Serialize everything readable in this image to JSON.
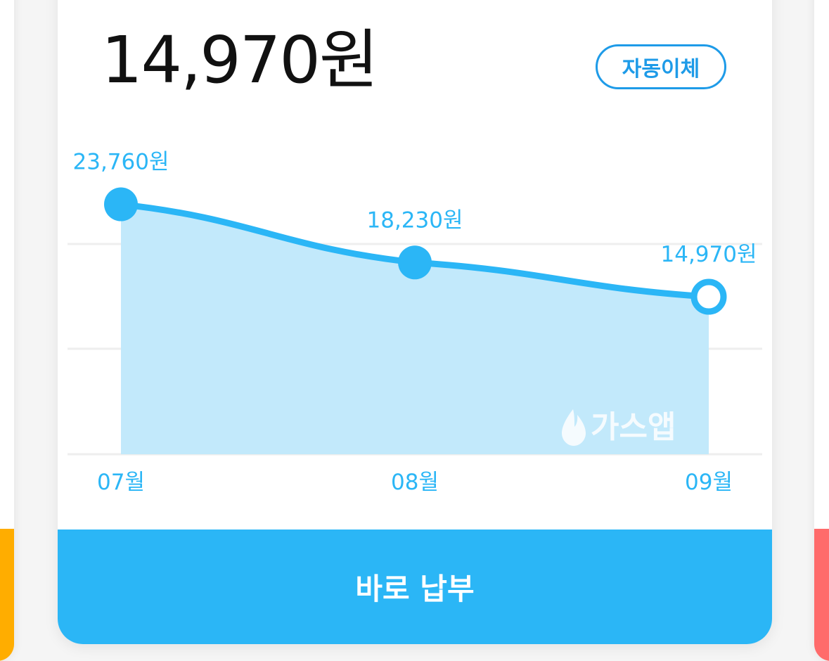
{
  "bill": {
    "amount": "14,970원",
    "auto_transfer_label": "자동이체",
    "pay_button_label": "바로 납부"
  },
  "watermark": {
    "text": "가스앱",
    "icon": "flame-icon"
  },
  "colors": {
    "accent": "#2bb6f6",
    "accent_dark": "#1e9be8",
    "area_fill": "#c2e9fb",
    "left_card_strip": "#ffad00",
    "right_card_strip": "#ff6b6b"
  },
  "chart_data": {
    "type": "area",
    "categories": [
      "07월",
      "08월",
      "09월"
    ],
    "values": [
      23760,
      18230,
      14970
    ],
    "value_labels": [
      "23,760원",
      "18,230원",
      "14,970원"
    ],
    "highlight_index": 2,
    "ylim": [
      0,
      25000
    ],
    "grid": true
  }
}
